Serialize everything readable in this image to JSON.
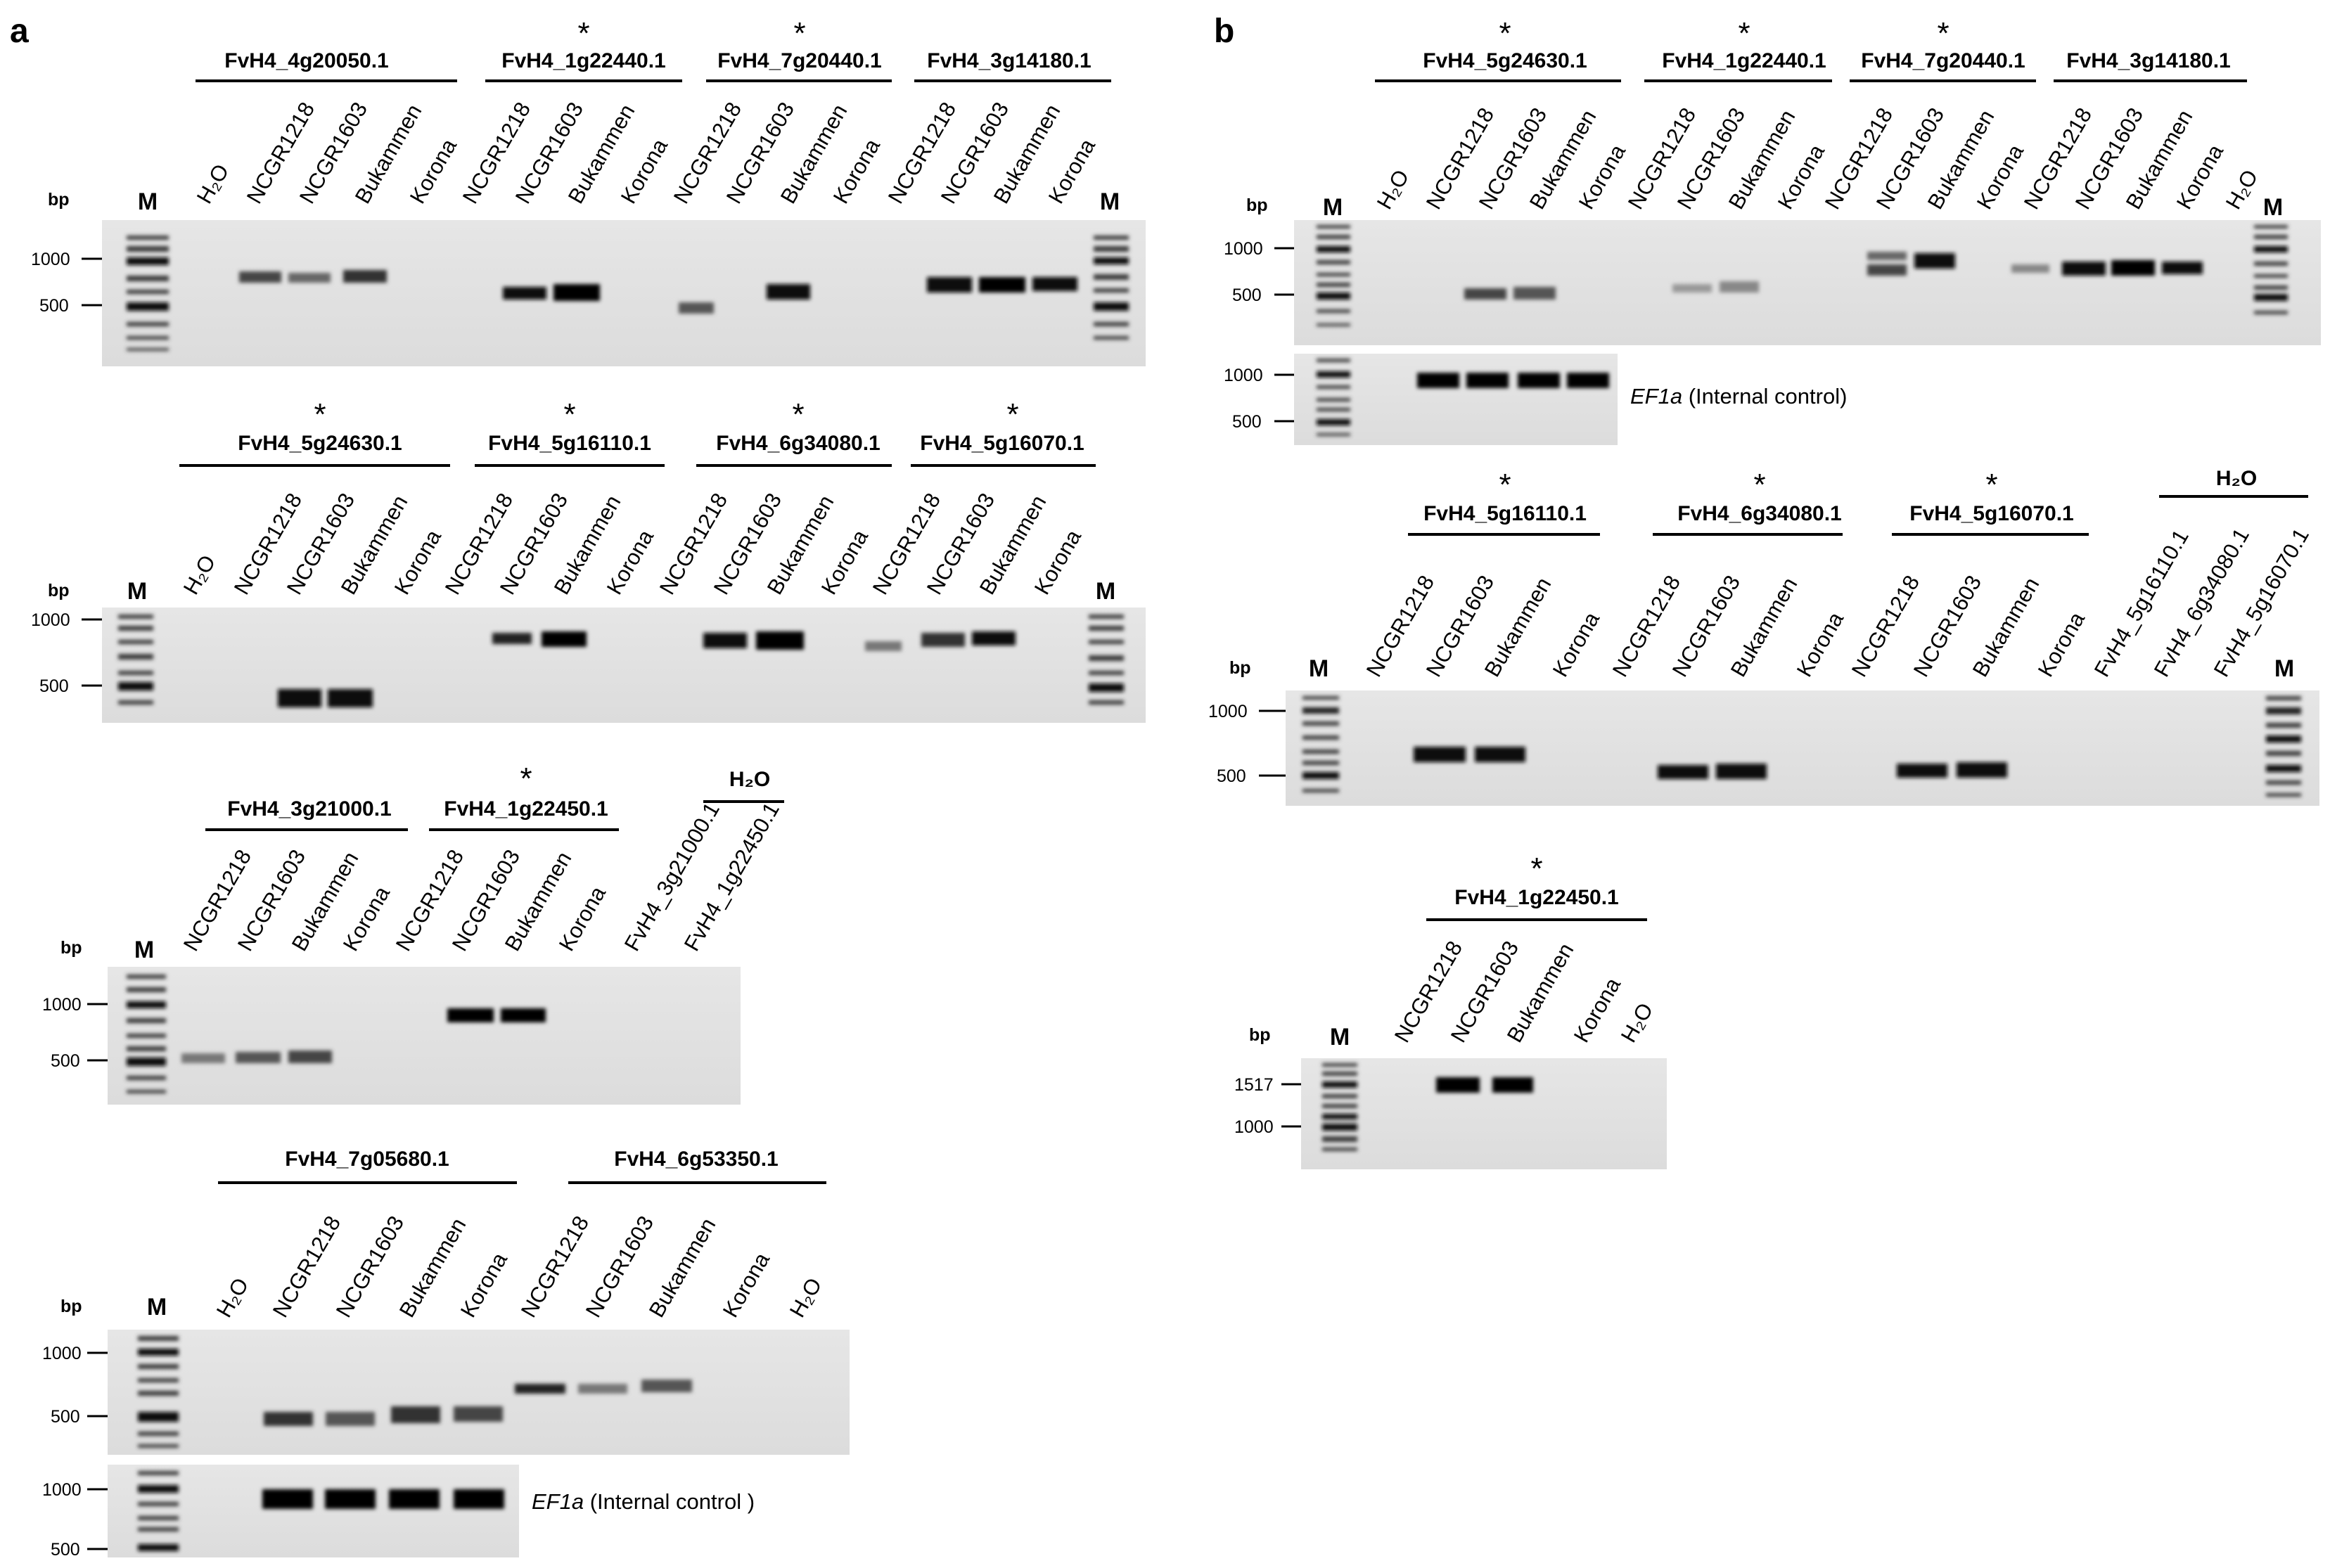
{
  "panel_a": {
    "letter": "a",
    "gel1": {
      "genes": [
        {
          "name": "FvH4_4g20050.1",
          "star": ""
        },
        {
          "name": "FvH4_1g22440.1",
          "star": "*"
        },
        {
          "name": "FvH4_7g20440.1",
          "star": "*"
        },
        {
          "name": "FvH4_3g14180.1",
          "star": ""
        }
      ],
      "lanes": [
        "H₂O",
        "NCGR1218",
        "NCGR1603",
        "Bukammen",
        "Korona",
        "NCGR1218",
        "NCGR1603",
        "Bukammen",
        "Korona",
        "NCGR1218",
        "NCGR1603",
        "Bukammen",
        "Korona",
        "NCGR1218",
        "NCGR1603",
        "Bukammen",
        "Korona"
      ],
      "marker": "M",
      "bp_label": "bp",
      "ticks": [
        "1000",
        "500"
      ]
    },
    "gel2": {
      "genes": [
        {
          "name": "FvH4_5g24630.1",
          "star": "*"
        },
        {
          "name": "FvH4_5g16110.1",
          "star": "*"
        },
        {
          "name": "FvH4_6g34080.1",
          "star": "*"
        },
        {
          "name": "FvH4_5g16070.1",
          "star": "*"
        }
      ],
      "lanes": [
        "H₂O",
        "NCGR1218",
        "NCGR1603",
        "Bukammen",
        "Korona",
        "NCGR1218",
        "NCGR1603",
        "Bukammen",
        "Korona",
        "NCGR1218",
        "NCGR1603",
        "Bukammen",
        "Korona",
        "NCGR1218",
        "NCGR1603",
        "Bukammen",
        "Korona"
      ],
      "marker": "M",
      "bp_label": "bp",
      "ticks": [
        "1000",
        "500"
      ]
    },
    "gel3": {
      "genes": [
        {
          "name": "FvH4_3g21000.1",
          "star": ""
        },
        {
          "name": "FvH4_1g22450.1",
          "star": "*"
        },
        {
          "name": "H₂O",
          "star": ""
        }
      ],
      "lanes": [
        "NCGR1218",
        "NCGR1603",
        "Bukammen",
        "Korona",
        "NCGR1218",
        "NCGR1603",
        "Bukammen",
        "Korona",
        "FvH4_3g21000.1",
        "FvH4_1g22450.1"
      ],
      "marker": "M",
      "bp_label": "bp",
      "ticks": [
        "1000",
        "500"
      ]
    },
    "gel4": {
      "genes": [
        {
          "name": "FvH4_7g05680.1",
          "star": ""
        },
        {
          "name": "FvH4_6g53350.1",
          "star": ""
        }
      ],
      "lanes": [
        "H₂O",
        "NCGR1218",
        "NCGR1603",
        "Bukammen",
        "Korona",
        "NCGR1218",
        "NCGR1603",
        "Bukammen",
        "Korona",
        "H₂O"
      ],
      "marker": "M",
      "bp_label": "bp",
      "ticks": [
        "1000",
        "500"
      ],
      "control": {
        "gene": "EF1a",
        "text": " (Internal control )",
        "ticks": [
          "1000",
          "500"
        ]
      }
    }
  },
  "panel_b": {
    "letter": "b",
    "gel1": {
      "genes": [
        {
          "name": "FvH4_5g24630.1",
          "star": "*"
        },
        {
          "name": "FvH4_1g22440.1",
          "star": "*"
        },
        {
          "name": "FvH4_7g20440.1",
          "star": "*"
        },
        {
          "name": "FvH4_3g14180.1",
          "star": ""
        }
      ],
      "lanes": [
        "H₂O",
        "NCGR1218",
        "NCGR1603",
        "Bukammen",
        "Korona",
        "NCGR1218",
        "NCGR1603",
        "Bukammen",
        "Korona",
        "NCGR1218",
        "NCGR1603",
        "Bukammen",
        "Korona",
        "NCGR1218",
        "NCGR1603",
        "Bukammen",
        "Korona",
        "H₂O"
      ],
      "marker": "M",
      "bp_label": "bp",
      "ticks": [
        "1000",
        "500"
      ],
      "control": {
        "gene": "EF1a",
        "text": " (Internal control)",
        "ticks": [
          "1000",
          "500"
        ]
      }
    },
    "gel2": {
      "genes": [
        {
          "name": "FvH4_5g16110.1",
          "star": "*"
        },
        {
          "name": "FvH4_6g34080.1",
          "star": "*"
        },
        {
          "name": "FvH4_5g16070.1",
          "star": "*"
        },
        {
          "name": "H₂O",
          "star": ""
        }
      ],
      "lanes": [
        "NCGR1218",
        "NCGR1603",
        "Bukammen",
        "Korona",
        "NCGR1218",
        "NCGR1603",
        "Bukammen",
        "Korona",
        "NCGR1218",
        "NCGR1603",
        "Bukammen",
        "Korona",
        "FvH4_5g16110.1",
        "FvH4_6g34080.1",
        "FvH4_5g16070.1"
      ],
      "marker": "M",
      "bp_label": "bp",
      "ticks": [
        "1000",
        "500"
      ]
    },
    "gel3": {
      "genes": [
        {
          "name": "FvH4_1g22450.1",
          "star": "*"
        }
      ],
      "lanes": [
        "NCGR1218",
        "NCGR1603",
        "Bukammen",
        "Korona",
        "H₂O"
      ],
      "marker": "M",
      "bp_label": "bp",
      "ticks": [
        "1517",
        "1000"
      ]
    }
  },
  "colors": {
    "gel_bg": "#e3e3e3",
    "band": "#111111",
    "text": "#000000"
  }
}
